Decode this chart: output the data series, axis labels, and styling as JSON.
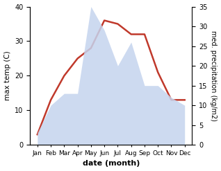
{
  "months": [
    "Jan",
    "Feb",
    "Mar",
    "Apr",
    "May",
    "Jun",
    "Jul",
    "Aug",
    "Sep",
    "Oct",
    "Nov",
    "Dec"
  ],
  "temperature": [
    3,
    13,
    20,
    25,
    28,
    36,
    35,
    32,
    32,
    21,
    13,
    13
  ],
  "precipitation": [
    3,
    10,
    13,
    13,
    35,
    29,
    20,
    26,
    15,
    15,
    12,
    10
  ],
  "temp_color": "#c0392b",
  "precip_fill_color": "#c5d4ee",
  "precip_alpha": 0.85,
  "xlabel": "date (month)",
  "ylabel_left": "max temp (C)",
  "ylabel_right": "med. precipitation (kg/m2)",
  "ylim_left": [
    0,
    40
  ],
  "ylim_right": [
    0,
    35
  ],
  "yticks_left": [
    0,
    10,
    20,
    30,
    40
  ],
  "yticks_right": [
    0,
    5,
    10,
    15,
    20,
    25,
    30,
    35
  ],
  "background_color": "#ffffff",
  "temp_linewidth": 1.8
}
